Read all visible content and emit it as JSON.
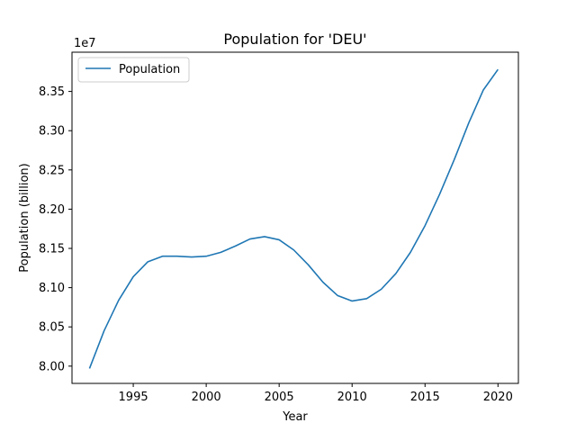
{
  "chart_data": {
    "type": "line",
    "title": "Population for 'DEU'",
    "xlabel": "Year",
    "ylabel": "Population (billion)",
    "y_offset_label": "1e7",
    "xlim": [
      1990.8,
      2021.4
    ],
    "ylim": [
      7.978,
      8.4
    ],
    "x_ticks": [
      1995,
      2000,
      2005,
      2010,
      2015,
      2020
    ],
    "x_tick_labels": [
      "1995",
      "2000",
      "2005",
      "2010",
      "2015",
      "2020"
    ],
    "y_ticks": [
      8.0,
      8.05,
      8.1,
      8.15,
      8.2,
      8.25,
      8.3,
      8.35
    ],
    "y_tick_labels": [
      "8.00",
      "8.05",
      "8.10",
      "8.15",
      "8.20",
      "8.25",
      "8.30",
      "8.35"
    ],
    "legend_position": "top-left",
    "grid": false,
    "series": [
      {
        "name": "Population",
        "color": "#1f77b4",
        "x": [
          1992,
          1993,
          1994,
          1995,
          1996,
          1997,
          1998,
          1999,
          2000,
          2001,
          2002,
          2003,
          2004,
          2005,
          2006,
          2007,
          2008,
          2009,
          2010,
          2011,
          2012,
          2013,
          2014,
          2015,
          2016,
          2017,
          2018,
          2019,
          2020
        ],
        "y": [
          7.997,
          8.045,
          8.084,
          8.114,
          8.133,
          8.14,
          8.14,
          8.139,
          8.14,
          8.145,
          8.153,
          8.162,
          8.165,
          8.161,
          8.148,
          8.129,
          8.107,
          8.09,
          8.083,
          8.086,
          8.098,
          8.118,
          8.145,
          8.179,
          8.219,
          8.263,
          8.31,
          8.352,
          8.378
        ]
      }
    ]
  }
}
